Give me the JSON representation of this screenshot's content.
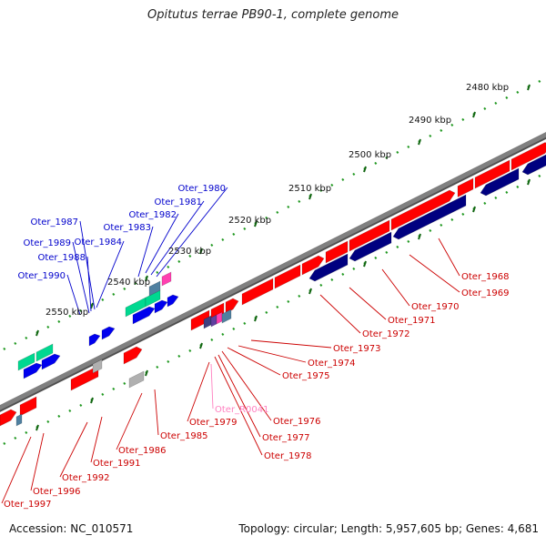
{
  "title": "Opitutus terrae PB90-1, complete genome",
  "footer": {
    "accession": "Accession: NC_010571",
    "summary": "Topology: circular; Length: 5,957,605 bp; Genes: 4,681"
  },
  "colors": {
    "forward": "#ff0000",
    "reverse": "#000080",
    "backbone": "#808080",
    "label_red": "#cc0000",
    "label_blue": "#0000cc",
    "label_pink": "#ff80c0",
    "rna_green": "#00d890",
    "pseudo_gray": "#b0b0b0",
    "misc_pink": "#ff40b0",
    "steel": "#5080a0"
  },
  "scale_labels": [
    "2480 kbp",
    "2490 kbp",
    "2500 kbp",
    "2510 kbp",
    "2520 kbp",
    "2530 kbp",
    "2540 kbp",
    "2550 kbp"
  ],
  "gene_labels_red": [
    "Oter_1968",
    "Oter_1969",
    "Oter_1970",
    "Oter_1971",
    "Oter_1972",
    "Oter_1973",
    "Oter_1974",
    "Oter_1975",
    "Oter_1976",
    "Oter_1977",
    "Oter_1978",
    "Oter_1979",
    "Oter_1985",
    "Oter_1986",
    "Oter_1991",
    "Oter_1992",
    "Oter_1996",
    "Oter_1997"
  ],
  "gene_labels_pink": [
    "Oter_R0041"
  ],
  "gene_labels_blue": [
    "Oter_1980",
    "Oter_1981",
    "Oter_1982",
    "Oter_1983",
    "Oter_1984",
    "Oter_1987",
    "Oter_1988",
    "Oter_1989",
    "Oter_1990"
  ]
}
